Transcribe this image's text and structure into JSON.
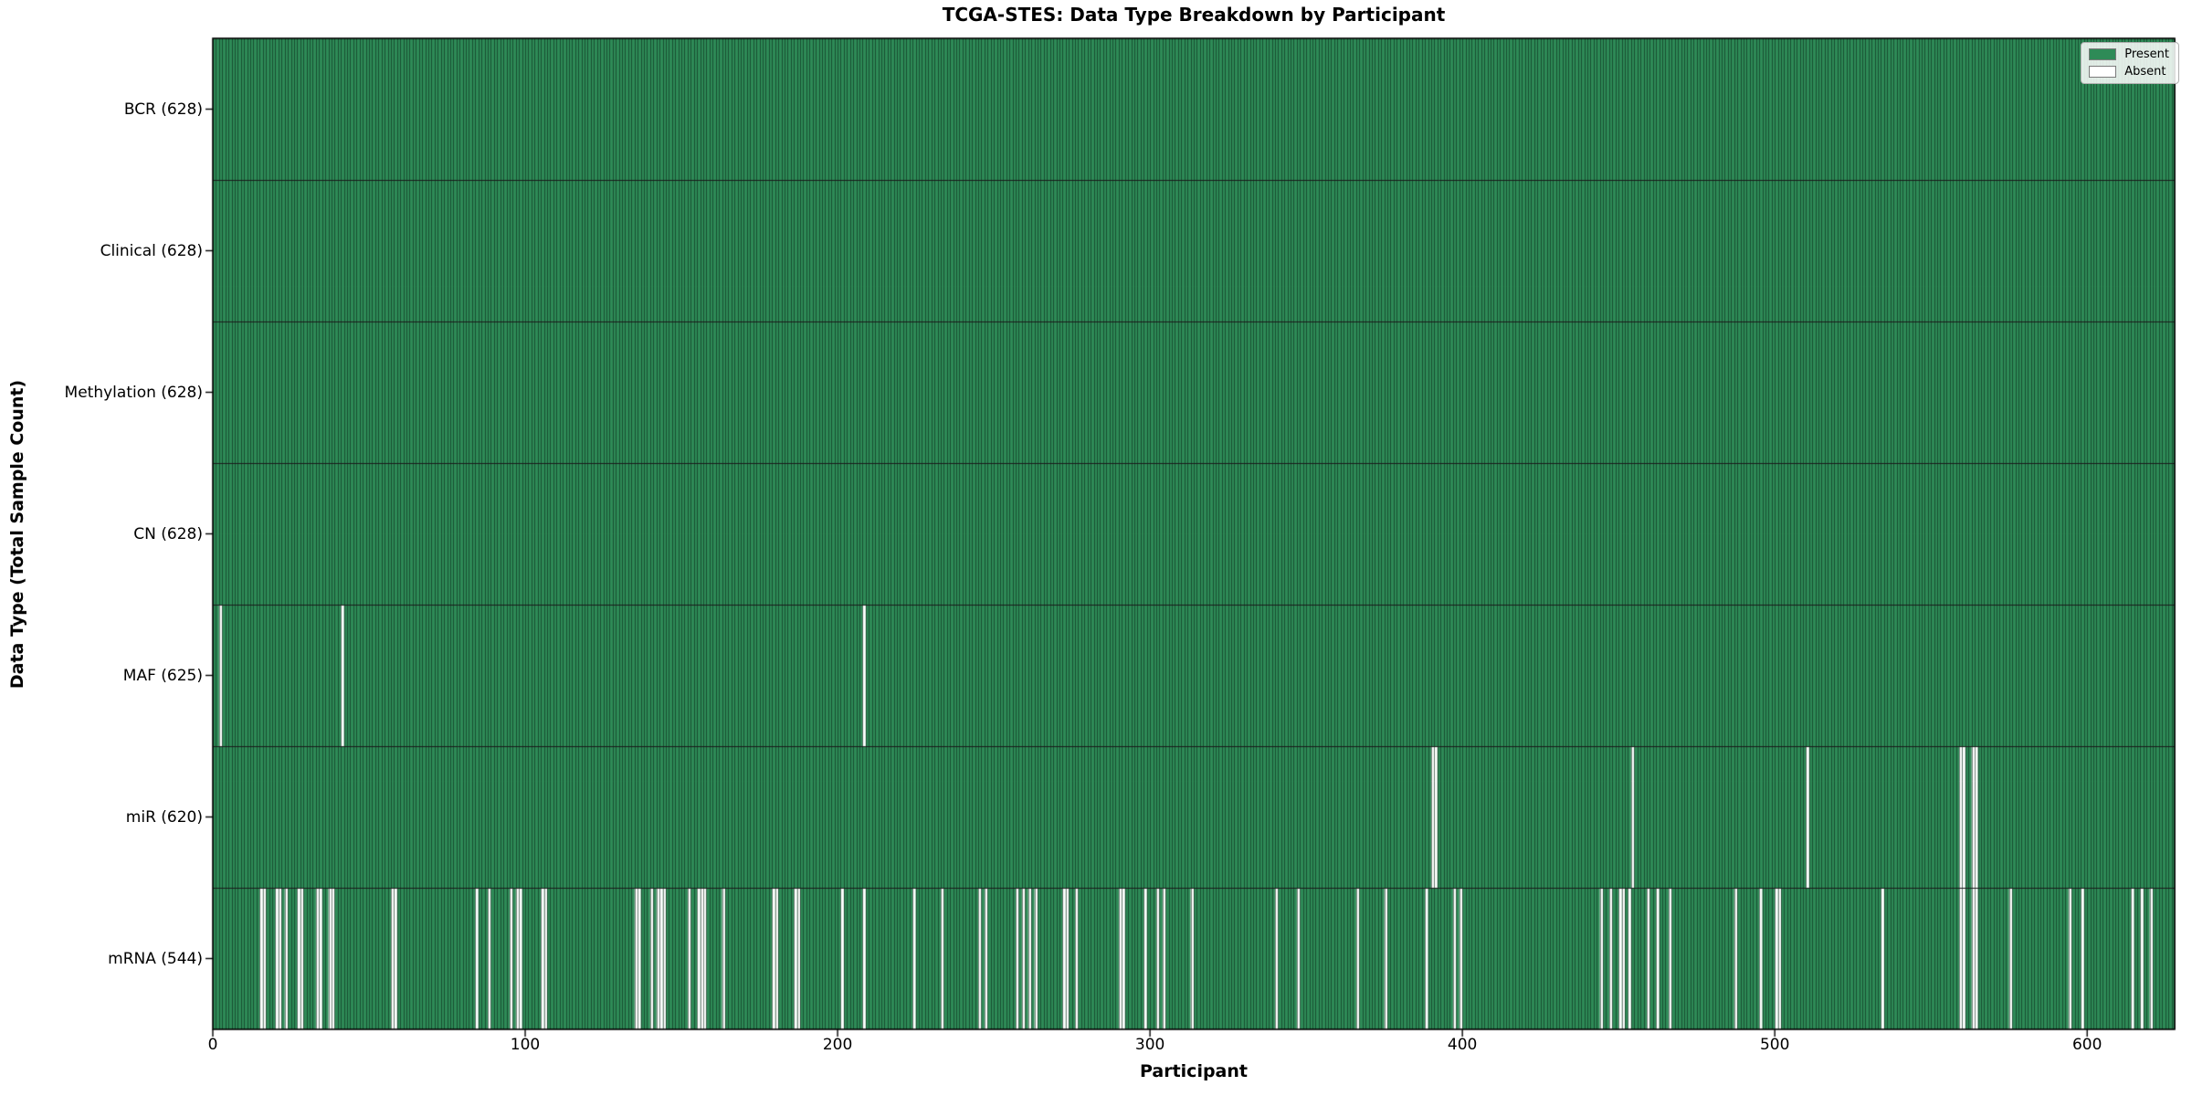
{
  "chart_data": {
    "type": "heatmap",
    "title": "TCGA-STES: Data Type Breakdown by Participant",
    "xlabel": "Participant",
    "ylabel": "Data Type (Total Sample Count)",
    "n_participants": 628,
    "x_ticks": [
      0,
      100,
      200,
      300,
      400,
      500,
      600
    ],
    "legend": [
      {
        "label": "Present",
        "color": "#2e8b57"
      },
      {
        "label": "Absent",
        "color": "#ffffff"
      }
    ],
    "colors": {
      "present": "#2e8b57",
      "absent": "#ffffff",
      "cell_edge": "rgba(8,30,18,0.55)",
      "row_separator": "#1a1a1a",
      "axis": "#000000"
    },
    "rows": [
      {
        "label": "BCR (628)",
        "data_type": "BCR",
        "present_count": 628,
        "absent_participants": []
      },
      {
        "label": "Clinical (628)",
        "data_type": "Clinical",
        "present_count": 628,
        "absent_participants": []
      },
      {
        "label": "Methylation (628)",
        "data_type": "Methylation",
        "present_count": 628,
        "absent_participants": []
      },
      {
        "label": "CN (628)",
        "data_type": "CN",
        "present_count": 628,
        "absent_participants": []
      },
      {
        "label": "MAF (625)",
        "data_type": "MAF",
        "present_count": 625,
        "absent_participants": [
          2,
          41,
          208
        ]
      },
      {
        "label": "miR (620)",
        "data_type": "miR",
        "present_count": 620,
        "absent_participants": [
          390,
          391,
          454,
          510,
          559,
          560,
          563,
          564
        ]
      },
      {
        "label": "mRNA (544)",
        "data_type": "mRNA",
        "present_count": 544,
        "absent_participants": [
          15,
          16,
          20,
          21,
          23,
          27,
          28,
          33,
          34,
          37,
          38,
          57,
          58,
          84,
          88,
          95,
          97,
          98,
          105,
          106,
          135,
          136,
          140,
          142,
          143,
          144,
          152,
          155,
          156,
          157,
          163,
          179,
          180,
          186,
          187,
          201,
          208,
          224,
          233,
          245,
          247,
          257,
          259,
          261,
          263,
          272,
          273,
          276,
          290,
          291,
          298,
          302,
          304,
          313,
          340,
          347,
          366,
          375,
          388,
          397,
          399,
          444,
          447,
          450,
          451,
          453,
          459,
          462,
          466,
          487,
          495,
          500,
          501,
          534,
          559,
          560,
          563,
          564,
          575,
          594,
          598,
          614,
          617,
          620
        ]
      }
    ]
  }
}
